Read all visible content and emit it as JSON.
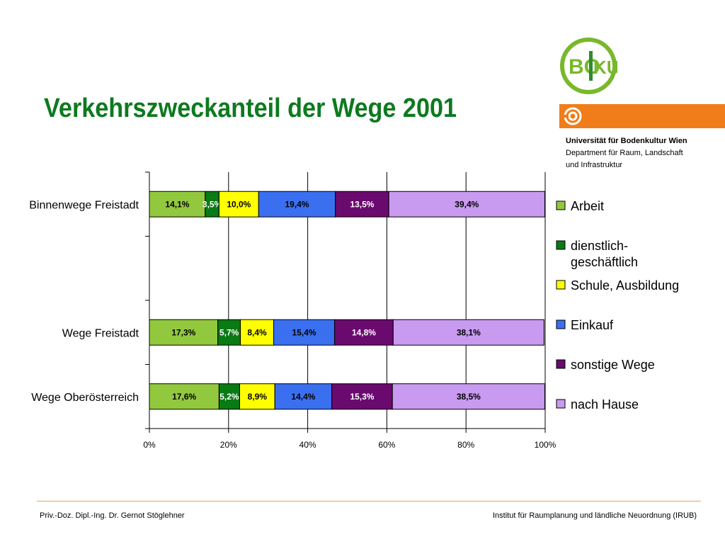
{
  "title": "Verkehrszweckanteil der Wege 2001",
  "logo": {
    "text_bo": "BO",
    "text_ku": "KU",
    "color_green": "#78b82a",
    "color_dark": "#2e8b2e"
  },
  "university": {
    "name": "Universität für Bodenkultur Wien",
    "department_line1": "Department für Raum, Landschaft",
    "department_line2": "und Infrastruktur"
  },
  "footer": {
    "left": "Priv.-Doz. Dipl.-Ing. Dr. Gernot Stöglehner",
    "right": "Institut für Raumplanung und ländliche Neuordnung (IRUB)"
  },
  "chart_data": {
    "type": "bar",
    "orientation": "horizontal",
    "stacked": "percent",
    "categories": [
      "Binnenwege Freistadt",
      "",
      "Wege Freistadt",
      "Wege Oberösterreich"
    ],
    "series": [
      {
        "name": "Arbeit",
        "color": "#92c83e",
        "values": [
          14.1,
          null,
          17.3,
          17.6
        ],
        "labels": [
          "14,1%",
          "",
          "17,3%",
          "17,6%"
        ],
        "label_color": "#000000"
      },
      {
        "name": "dienstlich-geschäftlich",
        "color": "#0a7a14",
        "values": [
          3.5,
          null,
          5.7,
          5.2
        ],
        "labels": [
          "3,5%",
          "",
          "5,7%",
          "5,2%"
        ],
        "label_color": "#ffffff"
      },
      {
        "name": "Schule, Ausbildung",
        "color": "#ffff00",
        "values": [
          10.0,
          null,
          8.4,
          8.9
        ],
        "labels": [
          "10,0%",
          "",
          "8,4%",
          "8,9%"
        ],
        "label_color": "#000000"
      },
      {
        "name": "Einkauf",
        "color": "#3a6ff0",
        "values": [
          19.4,
          null,
          15.4,
          14.4
        ],
        "labels": [
          "19,4%",
          "",
          "15,4%",
          "14,4%"
        ],
        "label_color": "#000000"
      },
      {
        "name": "sonstige Wege",
        "color": "#6a0a6e",
        "values": [
          13.5,
          null,
          14.8,
          15.3
        ],
        "labels": [
          "13,5%",
          "",
          "14,8%",
          "15,3%"
        ],
        "label_color": "#ffffff"
      },
      {
        "name": "nach Hause",
        "color": "#c89af0",
        "values": [
          39.4,
          null,
          38.1,
          38.5
        ],
        "labels": [
          "39,4%",
          "",
          "38,1%",
          "38,5%"
        ],
        "label_color": "#000000"
      }
    ],
    "legend": {
      "position": "right",
      "entries": [
        {
          "lines": [
            "Arbeit"
          ]
        },
        {
          "lines": [
            "dienstlich-",
            "geschäftlich"
          ]
        },
        {
          "lines": [
            "Schule, Ausbildung"
          ]
        },
        {
          "lines": [
            "Einkauf"
          ]
        },
        {
          "lines": [
            "sonstige Wege"
          ]
        },
        {
          "lines": [
            "nach Hause"
          ]
        }
      ]
    },
    "xlim": [
      0,
      100
    ],
    "xticks": [
      0,
      20,
      40,
      60,
      80,
      100
    ],
    "xtick_labels": [
      "0%",
      "20%",
      "40%",
      "60%",
      "80%",
      "100%"
    ],
    "grid": "vertical"
  }
}
